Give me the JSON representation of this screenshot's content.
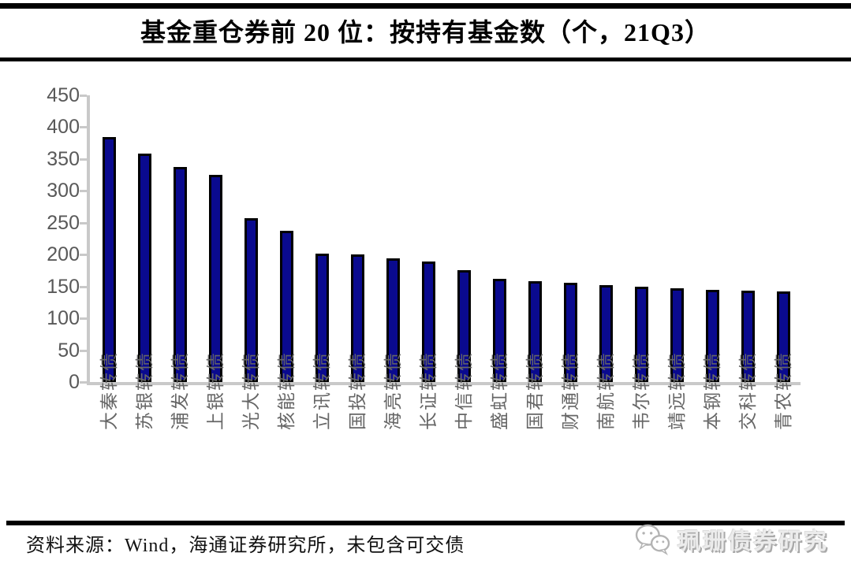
{
  "header": {
    "title": "基金重仓券前 20 位：按持有基金数（个，21Q3）"
  },
  "footer": {
    "source_note": "资料来源：Wind，海通证券研究所，未包含可交债",
    "watermark_text": "珮珊债券研究",
    "watermark_icon": "wechat-icon"
  },
  "colors": {
    "bar_fill": "#0a0a8f",
    "bar_border": "#000000",
    "axis_line": "#c9c9c9",
    "ytick_label": "#595959",
    "xtick_label": "#666666",
    "rule": "#000000"
  },
  "chart_data": {
    "type": "bar",
    "title": "基金重仓券前 20 位：按持有基金数（个，21Q3）",
    "categories": [
      "大秦转债",
      "苏银转债",
      "浦发转债",
      "上银转债",
      "光大转债",
      "核能转债",
      "立讯转债",
      "国投转债",
      "海亮转债",
      "长证转债",
      "中信转债",
      "盛虹转债",
      "国君转债",
      "财通转债",
      "南航转债",
      "韦尔转债",
      "靖远转债",
      "本钢转债",
      "交科转债",
      "青农转债"
    ],
    "values": [
      385,
      358,
      338,
      325,
      257,
      237,
      202,
      200,
      194,
      189,
      175,
      162,
      158,
      156,
      152,
      149,
      147,
      145,
      144,
      142
    ],
    "xlabel": "",
    "ylabel": "",
    "ylim": [
      0,
      450
    ],
    "yticks": [
      0,
      50,
      100,
      150,
      200,
      250,
      300,
      350,
      400,
      450
    ],
    "grid": false,
    "legend": null
  }
}
